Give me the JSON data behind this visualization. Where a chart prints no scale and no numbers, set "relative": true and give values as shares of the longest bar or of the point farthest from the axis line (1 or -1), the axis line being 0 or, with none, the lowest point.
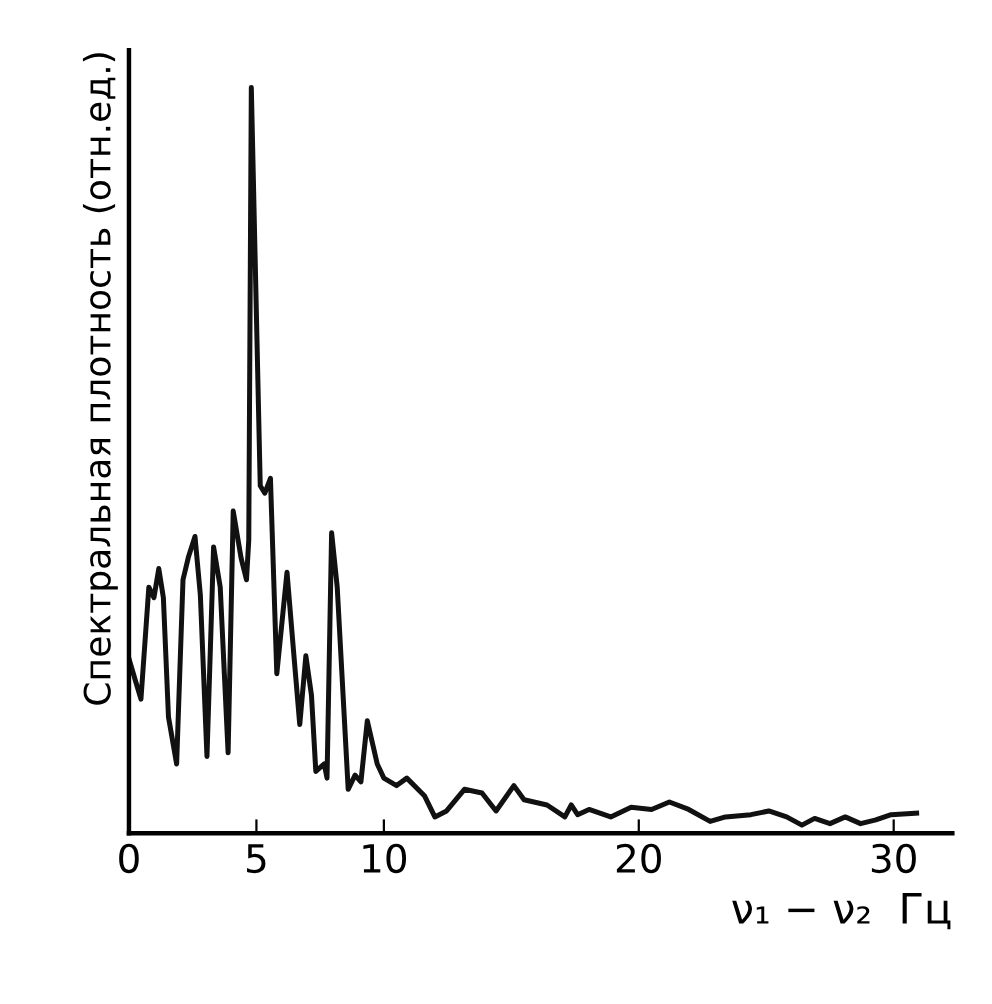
{
  "chart_data": {
    "type": "line",
    "relative": true,
    "xlabel": "ν₁ − ν₂  Гц",
    "ylabel": "Спектральная плотность (отн.ед.)",
    "xlim": [
      0,
      32.3
    ],
    "xticks": [
      0,
      5,
      10,
      20,
      30
    ],
    "grid": false,
    "legend": false,
    "marker": "none",
    "line_style": "solid",
    "series": [
      {
        "color": "#111111",
        "x": [
          0,
          0.26,
          0.47,
          0.78,
          0.98,
          1.17,
          1.35,
          1.55,
          1.87,
          2.12,
          2.33,
          2.59,
          2.8,
          3.06,
          3.32,
          3.58,
          3.89,
          4.09,
          4.4,
          4.61,
          4.7,
          4.8,
          5.15,
          5.33,
          5.55,
          5.8,
          6.2,
          6.46,
          6.7,
          6.94,
          7.16,
          7.33,
          7.66,
          7.77,
          7.95,
          8.17,
          8.6,
          8.87,
          9.1,
          9.35,
          9.74,
          10,
          10.5,
          10.9,
          11.6,
          12.0,
          12.46,
          13.16,
          13.85,
          14.4,
          15.1,
          15.5,
          16.4,
          17.1,
          17.35,
          17.6,
          18.05,
          18.9,
          19.7,
          20.5,
          21.2,
          21.96,
          22.8,
          23.4,
          24.4,
          25.1,
          25.8,
          26.4,
          26.9,
          27.5,
          28.1,
          28.7,
          29.3,
          29.9,
          30.9
        ],
        "values": [
          0.234,
          0.204,
          0.18,
          0.33,
          0.316,
          0.355,
          0.316,
          0.156,
          0.093,
          0.34,
          0.37,
          0.398,
          0.32,
          0.103,
          0.384,
          0.33,
          0.108,
          0.432,
          0.369,
          0.34,
          0.393,
          1.0,
          0.466,
          0.456,
          0.476,
          0.214,
          0.35,
          0.243,
          0.146,
          0.238,
          0.185,
          0.083,
          0.093,
          0.074,
          0.403,
          0.33,
          0.059,
          0.078,
          0.069,
          0.151,
          0.093,
          0.074,
          0.064,
          0.074,
          0.05,
          0.022,
          0.03,
          0.059,
          0.054,
          0.03,
          0.064,
          0.045,
          0.038,
          0.022,
          0.038,
          0.025,
          0.032,
          0.022,
          0.035,
          0.032,
          0.042,
          0.032,
          0.016,
          0.022,
          0.025,
          0.03,
          0.022,
          0.011,
          0.02,
          0.013,
          0.022,
          0.013,
          0.018,
          0.025,
          0.027
        ]
      }
    ]
  }
}
